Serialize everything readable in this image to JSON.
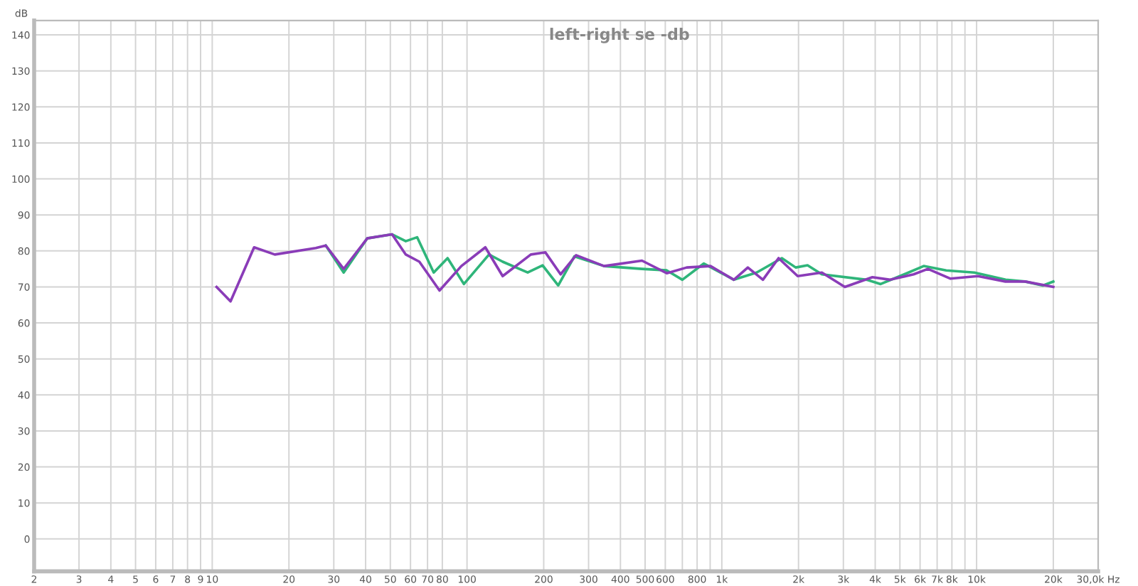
{
  "chart_data": {
    "type": "line",
    "title": "left-right se -db",
    "ylabel": "dB",
    "log": "x",
    "grid": true,
    "marker": "none",
    "line_style": "solid",
    "xlim": [
      2,
      30000
    ],
    "ylim": [
      -9,
      144
    ],
    "xticks": [
      2,
      3,
      4,
      5,
      6,
      7,
      8,
      9,
      10,
      20,
      30,
      40,
      50,
      60,
      70,
      80,
      100,
      200,
      300,
      400,
      500,
      600,
      {
        "value": 700,
        "label": null
      },
      800,
      {
        "value": 900,
        "label": null
      },
      {
        "value": 1000,
        "label": "1k"
      },
      {
        "value": 2000,
        "label": "2k"
      },
      {
        "value": 3000,
        "label": "3k"
      },
      {
        "value": 4000,
        "label": "4k"
      },
      {
        "value": 5000,
        "label": "5k"
      },
      {
        "value": 6000,
        "label": "6k"
      },
      {
        "value": 7000,
        "label": "7k"
      },
      {
        "value": 8000,
        "label": "8k"
      },
      {
        "value": 9000,
        "label": null
      },
      {
        "value": 10000,
        "label": "10k"
      },
      {
        "value": 20000,
        "label": "20k"
      },
      {
        "value": 30000,
        "label": "30,0k Hz"
      }
    ],
    "yticks": [
      0,
      10,
      20,
      30,
      40,
      50,
      60,
      70,
      80,
      90,
      100,
      110,
      120,
      130,
      140
    ],
    "series": [
      {
        "color": "#2fb57a",
        "x": [
          27.9,
          32.8,
          40.6,
          50.8,
          57.5,
          63.7,
          74,
          83.9,
          97.2,
          122,
          138,
          173,
          198,
          228,
          264,
          345,
          486,
          608,
          700,
          850,
          1115,
          1370,
          1720,
          1950,
          2170,
          2470,
          3700,
          4200,
          5200,
          6200,
          7600,
          9800,
          13000,
          15500,
          18200,
          20000
        ],
        "values": [
          81.5,
          74,
          83.5,
          84.6,
          82.7,
          83.8,
          74,
          78,
          70.8,
          79,
          77,
          74,
          76,
          70.4,
          78.5,
          75.8,
          75,
          74.6,
          72,
          76.5,
          72,
          74,
          78,
          75.4,
          76,
          73.5,
          72,
          70.8,
          73.5,
          75.8,
          74.6,
          74,
          72,
          71.5,
          70.4,
          71.5
        ]
      },
      {
        "color": "#8a3cb8",
        "x": [
          10.4,
          11.8,
          14.6,
          17.6,
          25.5,
          27.9,
          32.8,
          40.6,
          50.8,
          57.5,
          65,
          78,
          95,
          118,
          138,
          178,
          203,
          233,
          268,
          345,
          486,
          608,
          728,
          903,
          1115,
          1265,
          1450,
          1670,
          1985,
          2470,
          3040,
          3900,
          4580,
          5660,
          6440,
          7900,
          10120,
          12970,
          15500,
          20000
        ],
        "values": [
          70,
          66,
          81,
          79,
          80.8,
          81.5,
          75,
          83.5,
          84.6,
          79,
          77,
          69,
          75.8,
          81,
          73,
          79,
          79.6,
          73.5,
          78.8,
          75.8,
          77.3,
          73.8,
          75.4,
          75.8,
          72,
          75.4,
          72,
          78,
          73,
          74,
          70,
          72.7,
          72,
          73.5,
          75,
          72.3,
          73,
          71.5,
          71.5,
          70
        ]
      }
    ]
  }
}
